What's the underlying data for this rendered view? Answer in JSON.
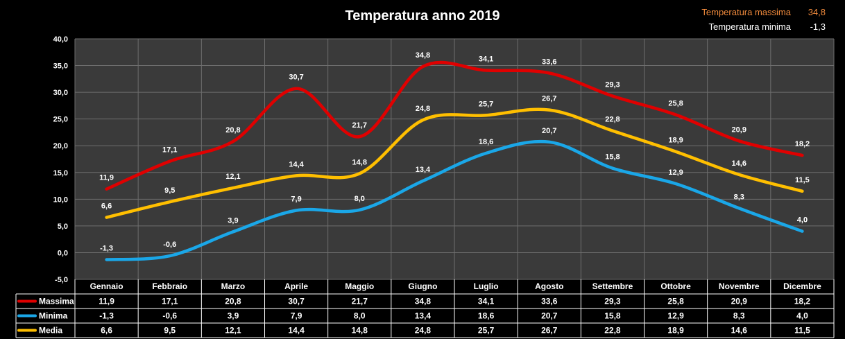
{
  "chart_data": {
    "type": "line",
    "title": "Temperatura anno 2019",
    "categories": [
      "Gennaio",
      "Febbraio",
      "Marzo",
      "Aprile",
      "Maggio",
      "Giugno",
      "Luglio",
      "Agosto",
      "Settembre",
      "Ottobre",
      "Novembre",
      "Dicembre"
    ],
    "series": [
      {
        "name": "Massima",
        "color": "#e00000",
        "values": [
          11.9,
          17.1,
          20.8,
          30.7,
          21.7,
          34.8,
          34.1,
          33.6,
          29.3,
          25.8,
          20.9,
          18.2
        ],
        "labels": [
          "11,9",
          "17,1",
          "20,8",
          "30,7",
          "21,7",
          "34,8",
          "34,1",
          "33,6",
          "29,3",
          "25,8",
          "20,9",
          "18,2"
        ]
      },
      {
        "name": "Minima",
        "color": "#1aa7e8",
        "values": [
          -1.3,
          -0.6,
          3.9,
          7.9,
          8.0,
          13.4,
          18.6,
          20.7,
          15.8,
          12.9,
          8.3,
          4.0
        ],
        "labels": [
          "-1,3",
          "-0,6",
          "3,9",
          "7,9",
          "8,0",
          "13,4",
          "18,6",
          "20,7",
          "15,8",
          "12,9",
          "8,3",
          "4,0"
        ]
      },
      {
        "name": "Media",
        "color": "#ffbf00",
        "values": [
          6.6,
          9.5,
          12.1,
          14.4,
          14.8,
          24.8,
          25.7,
          26.7,
          22.8,
          18.9,
          14.6,
          11.5
        ],
        "labels": [
          "6,6",
          "9,5",
          "12,1",
          "14,4",
          "14,8",
          "24,8",
          "25,7",
          "26,7",
          "22,8",
          "18,9",
          "14,6",
          "11,5"
        ]
      }
    ],
    "ylim": [
      -5,
      40
    ],
    "yticks": [
      "-5,0",
      "0,0",
      "5,0",
      "10,0",
      "15,0",
      "20,0",
      "25,0",
      "30,0",
      "35,0",
      "40,0"
    ],
    "grid": true,
    "data_table": true
  },
  "legend_box": {
    "max_label": "Temperatura massima",
    "max_value": "34,8",
    "max_color": "#f08a3c",
    "min_label": "Temperatura minima",
    "min_value": "-1,3",
    "min_color": "#ffffff"
  },
  "colors": {
    "plot_background": "#3a3a3a",
    "grid": "#6e6e6e",
    "page_background": "#000000"
  }
}
